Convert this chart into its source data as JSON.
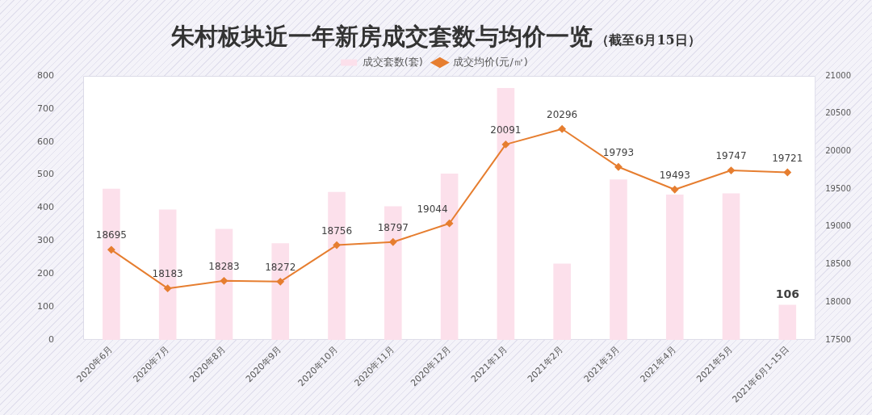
{
  "chart_data": {
    "type": "bar",
    "title": "朱村板块近一年新房成交套数与均价一览",
    "subtitle": "（截至6月15日）",
    "categories": [
      "2020年6月",
      "2020年7月",
      "2020年8月",
      "2020年9月",
      "2020年10月",
      "2020年11月",
      "2020年12月",
      "2021年1月",
      "2021年2月",
      "2021年3月",
      "2021年4月",
      "2021年5月",
      "2021年6月1-15日"
    ],
    "series": [
      {
        "name": "成交套数(套)",
        "color": "#fce0eb",
        "values": [
          458,
          395,
          336,
          293,
          448,
          405,
          504,
          763,
          231,
          486,
          440,
          444,
          106
        ],
        "value_labels": [
          null,
          null,
          null,
          null,
          null,
          null,
          null,
          null,
          null,
          null,
          null,
          null,
          "106"
        ]
      },
      {
        "name": "成交均价(元/㎡)",
        "type": "line",
        "axis": "y2",
        "color": "#e67e30",
        "marker": "diamond",
        "values": [
          18695,
          18183,
          18283,
          18272,
          18756,
          18797,
          19044,
          20091,
          20296,
          19793,
          19493,
          19747,
          19721
        ],
        "value_labels": [
          "18695",
          "18183",
          "18283",
          "18272",
          "18756",
          "18797",
          "19044",
          "20091",
          "20296",
          "19793",
          "19493",
          "19747",
          "19721"
        ]
      }
    ],
    "ylim": [
      0,
      800
    ],
    "yticks": [
      0,
      100,
      200,
      300,
      400,
      500,
      600,
      700,
      800
    ],
    "y2lim": [
      17500,
      21000
    ],
    "y2ticks": [
      17500,
      18000,
      18500,
      19000,
      19500,
      20000,
      20500,
      21000
    ],
    "legend": "top",
    "grid": false
  }
}
